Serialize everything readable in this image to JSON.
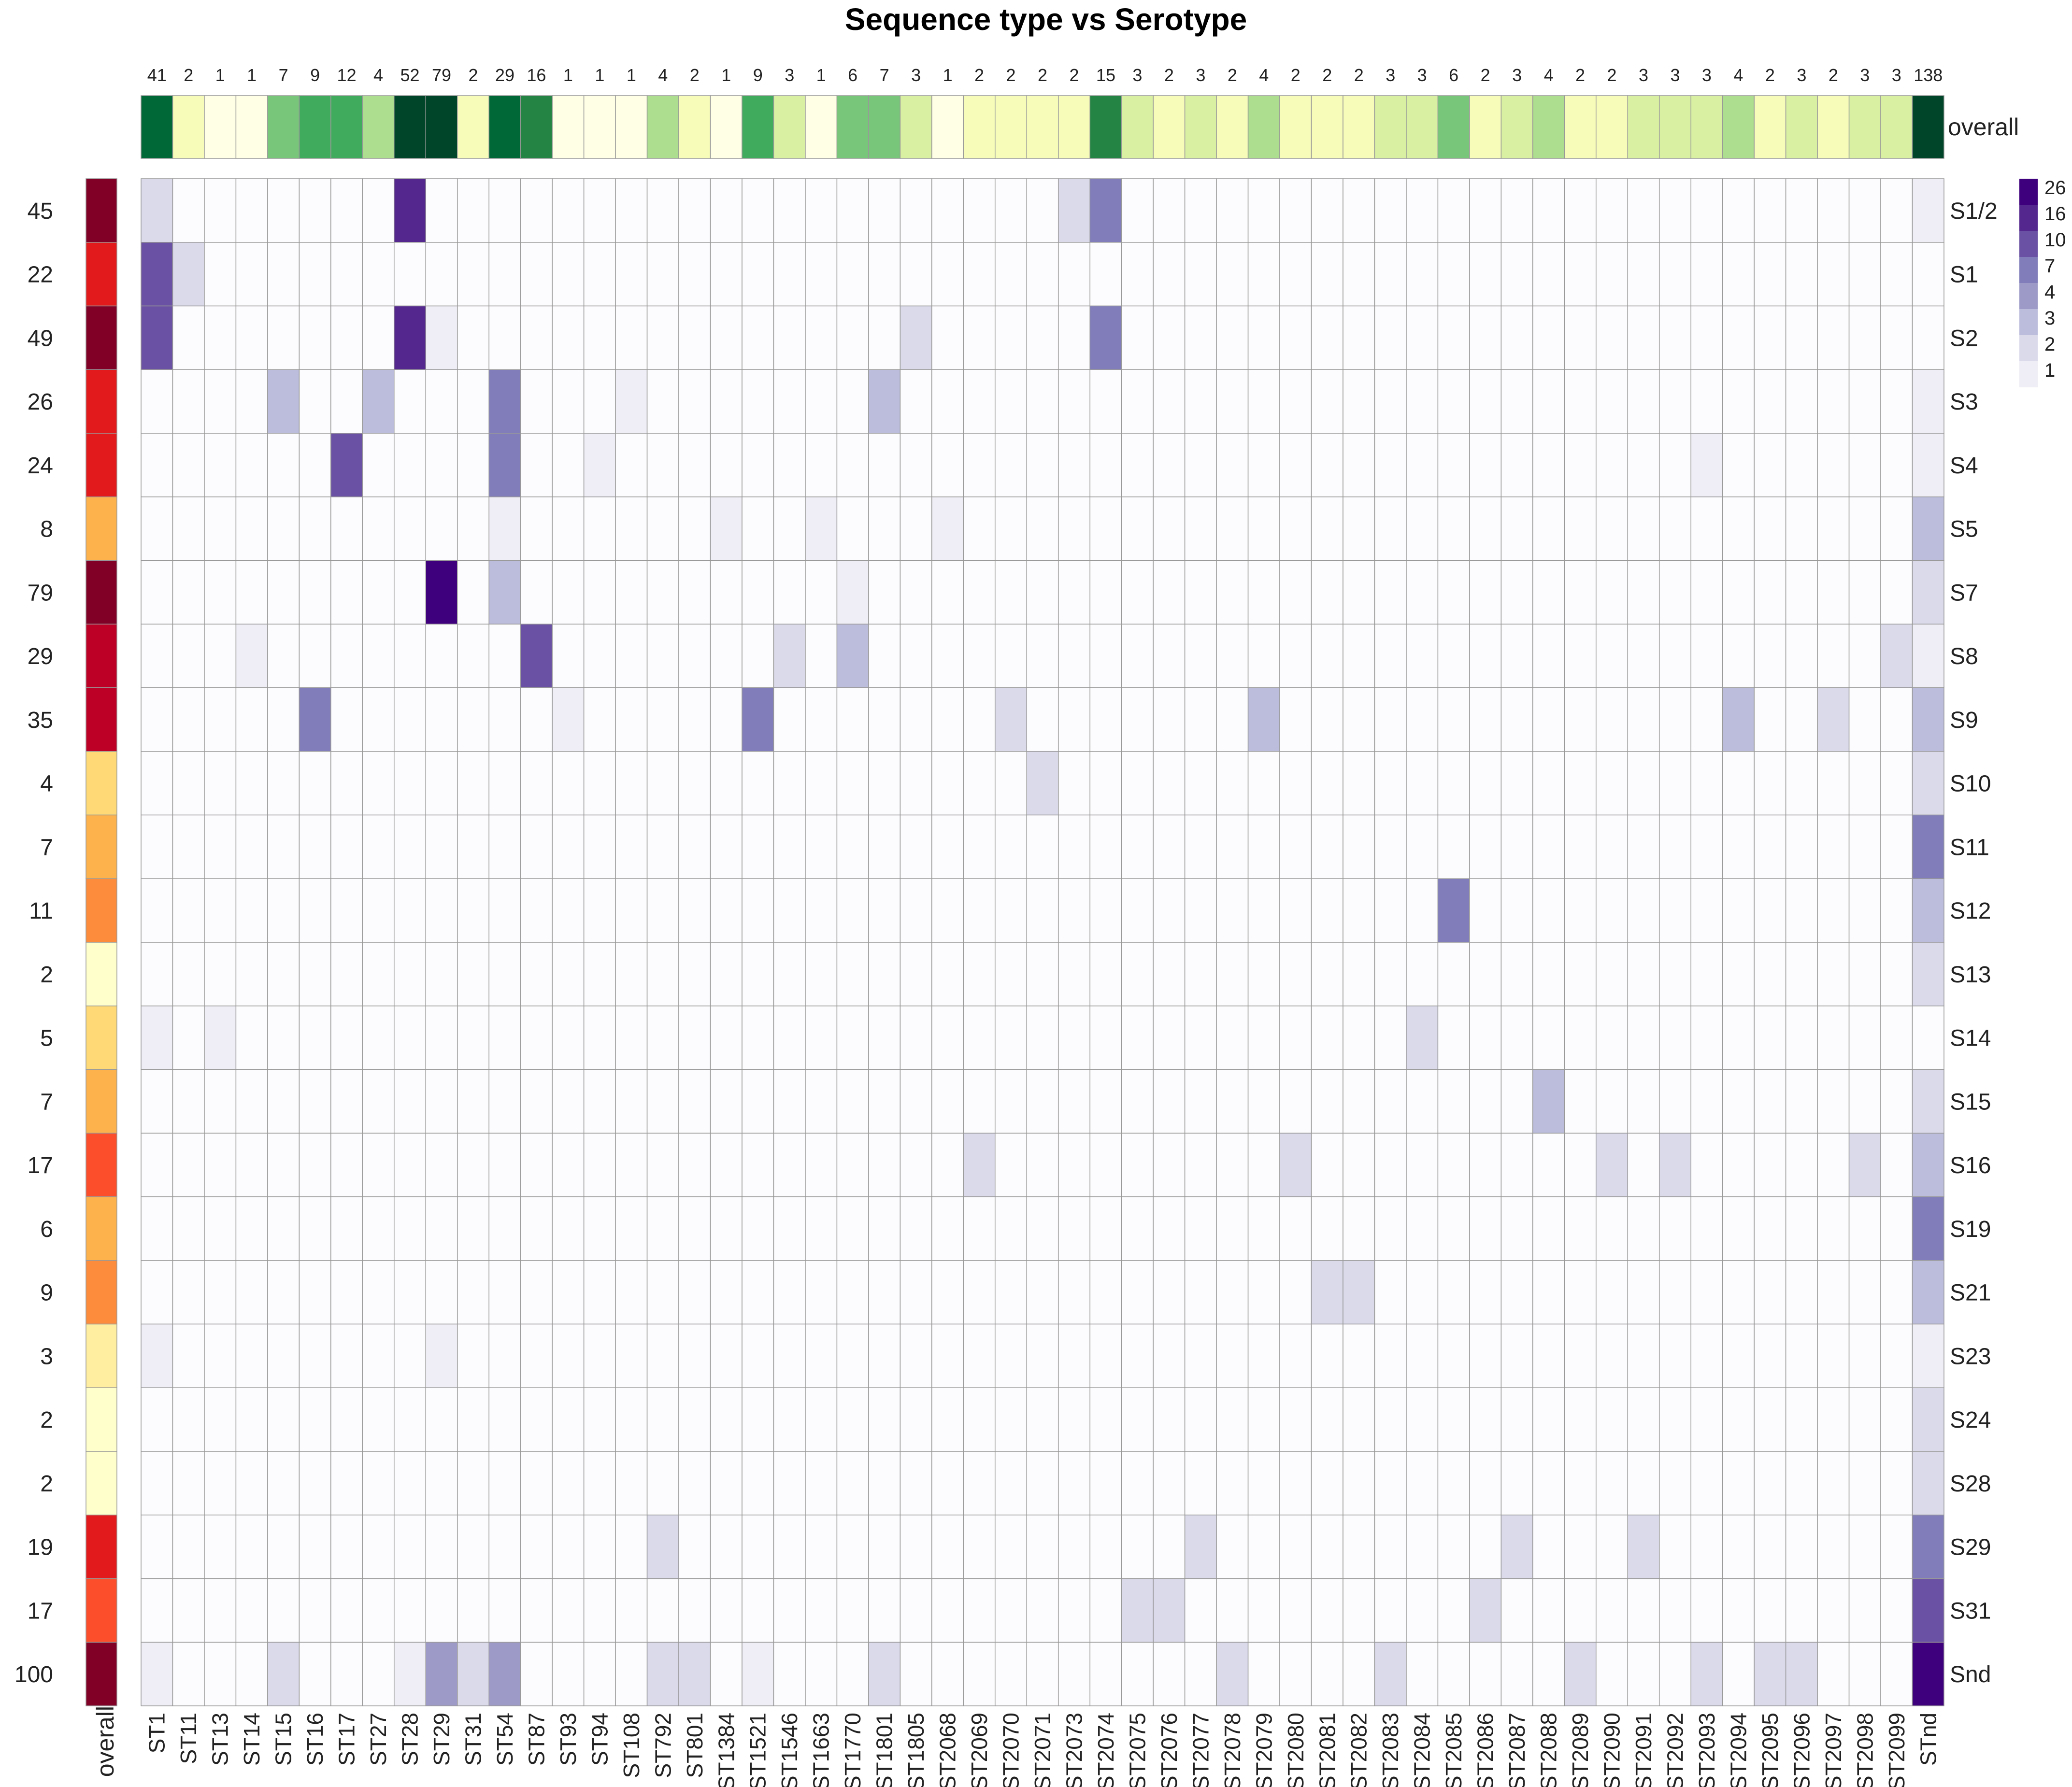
{
  "chart_data": {
    "type": "heatmap",
    "title": "Sequence type vs Serotype",
    "x_label_overall": "overall",
    "y_label_overall": "overall",
    "columns": [
      "ST1",
      "ST11",
      "ST13",
      "ST14",
      "ST15",
      "ST16",
      "ST17",
      "ST27",
      "ST28",
      "ST29",
      "ST31",
      "ST54",
      "ST87",
      "ST93",
      "ST94",
      "ST108",
      "ST792",
      "ST801",
      "ST1384",
      "ST1521",
      "ST1546",
      "ST1663",
      "ST1770",
      "ST1801",
      "ST1805",
      "ST2068",
      "ST2069",
      "ST2070",
      "ST2071",
      "ST2073",
      "ST2074",
      "ST2075",
      "ST2076",
      "ST2077",
      "ST2078",
      "ST2079",
      "ST2080",
      "ST2081",
      "ST2082",
      "ST2083",
      "ST2084",
      "ST2085",
      "ST2086",
      "ST2087",
      "ST2088",
      "ST2089",
      "ST2090",
      "ST2091",
      "ST2092",
      "ST2093",
      "ST2094",
      "ST2095",
      "ST2096",
      "ST2097",
      "ST2098",
      "ST2099",
      "STnd"
    ],
    "column_totals": [
      41,
      2,
      1,
      1,
      7,
      9,
      12,
      4,
      52,
      79,
      2,
      29,
      16,
      1,
      1,
      1,
      4,
      2,
      1,
      9,
      3,
      1,
      6,
      7,
      3,
      1,
      2,
      2,
      2,
      2,
      15,
      3,
      2,
      3,
      2,
      4,
      2,
      2,
      2,
      3,
      3,
      6,
      2,
      3,
      4,
      2,
      2,
      3,
      3,
      3,
      4,
      2,
      3,
      2,
      3,
      3,
      138
    ],
    "rows": [
      "S1/2",
      "S1",
      "S2",
      "S3",
      "S4",
      "S5",
      "S7",
      "S8",
      "S9",
      "S10",
      "S11",
      "S12",
      "S13",
      "S14",
      "S15",
      "S16",
      "S19",
      "S21",
      "S23",
      "S24",
      "S28",
      "S29",
      "S31",
      "Snd"
    ],
    "row_totals": [
      45,
      22,
      49,
      26,
      24,
      8,
      79,
      29,
      35,
      4,
      7,
      11,
      2,
      5,
      7,
      17,
      6,
      9,
      3,
      2,
      2,
      19,
      17,
      100
    ],
    "nonzero_cells": [
      [
        "S1/2",
        "ST1",
        2
      ],
      [
        "S1/2",
        "ST28",
        16
      ],
      [
        "S1/2",
        "ST2073",
        2
      ],
      [
        "S1/2",
        "ST2074",
        5
      ],
      [
        "S1/2",
        "STnd",
        1
      ],
      [
        "S1",
        "ST1",
        10
      ],
      [
        "S1",
        "ST11",
        2
      ],
      [
        "S2",
        "ST1",
        10
      ],
      [
        "S2",
        "ST28",
        12
      ],
      [
        "S2",
        "ST29",
        1
      ],
      [
        "S2",
        "ST1805",
        2
      ],
      [
        "S2",
        "ST2074",
        5
      ],
      [
        "S3",
        "ST15",
        3
      ],
      [
        "S3",
        "ST27",
        3
      ],
      [
        "S3",
        "ST54",
        7
      ],
      [
        "S3",
        "ST108",
        1
      ],
      [
        "S3",
        "ST1801",
        3
      ],
      [
        "S3",
        "STnd",
        1
      ],
      [
        "S4",
        "ST17",
        8
      ],
      [
        "S4",
        "ST54",
        5
      ],
      [
        "S4",
        "ST94",
        1
      ],
      [
        "S4",
        "ST2093",
        1
      ],
      [
        "S4",
        "STnd",
        1
      ],
      [
        "S5",
        "ST54",
        1
      ],
      [
        "S5",
        "ST1384",
        1
      ],
      [
        "S5",
        "ST1663",
        1
      ],
      [
        "S5",
        "ST2068",
        1
      ],
      [
        "S5",
        "STnd",
        3
      ],
      [
        "S7",
        "ST29",
        26
      ],
      [
        "S7",
        "ST54",
        3
      ],
      [
        "S7",
        "ST1770",
        1
      ],
      [
        "S7",
        "STnd",
        2
      ],
      [
        "S8",
        "ST14",
        1
      ],
      [
        "S8",
        "ST87",
        8
      ],
      [
        "S8",
        "ST1546",
        2
      ],
      [
        "S8",
        "ST1770",
        3
      ],
      [
        "S8",
        "ST2099",
        2
      ],
      [
        "S8",
        "STnd",
        1
      ],
      [
        "S9",
        "ST16",
        5
      ],
      [
        "S9",
        "ST93",
        1
      ],
      [
        "S9",
        "ST1521",
        5
      ],
      [
        "S9",
        "ST2070",
        2
      ],
      [
        "S9",
        "ST2079",
        3
      ],
      [
        "S9",
        "ST2094",
        3
      ],
      [
        "S9",
        "ST2097",
        2
      ],
      [
        "S9",
        "STnd",
        3
      ],
      [
        "S10",
        "ST2071",
        2
      ],
      [
        "S10",
        "STnd",
        2
      ],
      [
        "S11",
        "STnd",
        5
      ],
      [
        "S12",
        "ST2085",
        5
      ],
      [
        "S12",
        "STnd",
        3
      ],
      [
        "S13",
        "STnd",
        2
      ],
      [
        "S14",
        "ST1",
        1
      ],
      [
        "S14",
        "ST13",
        1
      ],
      [
        "S14",
        "ST2084",
        2
      ],
      [
        "S15",
        "ST2088",
        3
      ],
      [
        "S15",
        "STnd",
        2
      ],
      [
        "S16",
        "ST2069",
        2
      ],
      [
        "S16",
        "ST2080",
        2
      ],
      [
        "S16",
        "ST2090",
        2
      ],
      [
        "S16",
        "ST2092",
        2
      ],
      [
        "S16",
        "ST2098",
        2
      ],
      [
        "S16",
        "STnd",
        3
      ],
      [
        "S19",
        "STnd",
        5
      ],
      [
        "S21",
        "ST2081",
        2
      ],
      [
        "S21",
        "ST2082",
        2
      ],
      [
        "S21",
        "STnd",
        3
      ],
      [
        "S23",
        "ST1",
        1
      ],
      [
        "S23",
        "ST29",
        1
      ],
      [
        "S23",
        "STnd",
        1
      ],
      [
        "S24",
        "STnd",
        2
      ],
      [
        "S28",
        "STnd",
        2
      ],
      [
        "S29",
        "ST792",
        2
      ],
      [
        "S29",
        "ST2077",
        2
      ],
      [
        "S29",
        "ST2087",
        2
      ],
      [
        "S29",
        "ST2091",
        2
      ],
      [
        "S29",
        "STnd",
        5
      ],
      [
        "S31",
        "ST2075",
        2
      ],
      [
        "S31",
        "ST2076",
        2
      ],
      [
        "S31",
        "ST2086",
        2
      ],
      [
        "S31",
        "STnd",
        8
      ],
      [
        "Snd",
        "ST1",
        1
      ],
      [
        "Snd",
        "ST15",
        2
      ],
      [
        "Snd",
        "ST28",
        1
      ],
      [
        "Snd",
        "ST29",
        4
      ],
      [
        "Snd",
        "ST31",
        2
      ],
      [
        "Snd",
        "ST54",
        4
      ],
      [
        "Snd",
        "ST792",
        2
      ],
      [
        "Snd",
        "ST801",
        2
      ],
      [
        "Snd",
        "ST1521",
        1
      ],
      [
        "Snd",
        "ST1801",
        2
      ],
      [
        "Snd",
        "ST2078",
        2
      ],
      [
        "Snd",
        "ST2083",
        2
      ],
      [
        "Snd",
        "ST2089",
        2
      ],
      [
        "Snd",
        "ST2093",
        2
      ],
      [
        "Snd",
        "ST2095",
        2
      ],
      [
        "Snd",
        "ST2096",
        2
      ],
      [
        "Snd",
        "STnd",
        26
      ]
    ],
    "legend": {
      "labels": [
        "26",
        "16",
        "10",
        "7",
        "4",
        "3",
        "2",
        "1"
      ],
      "colors": [
        "#3f007d",
        "#54278f",
        "#6a51a3",
        "#807dba",
        "#9e9ac8",
        "#bcbddc",
        "#dadaeb",
        "#efedf5"
      ],
      "placement": "top-right"
    },
    "colors": {
      "zero_cell": "#fcfbfd",
      "grid": "#999999",
      "col_total_scale": [
        "#ffffe5",
        "#f7fcb9",
        "#d9f0a3",
        "#addd8e",
        "#78c679",
        "#41ab5d",
        "#238443",
        "#006837",
        "#004529"
      ],
      "row_total_scale": [
        "#ffffcc",
        "#ffeda0",
        "#fed976",
        "#feb24c",
        "#fd8d3c",
        "#fc4e2a",
        "#e31a1c",
        "#bd0026",
        "#800026"
      ]
    }
  }
}
